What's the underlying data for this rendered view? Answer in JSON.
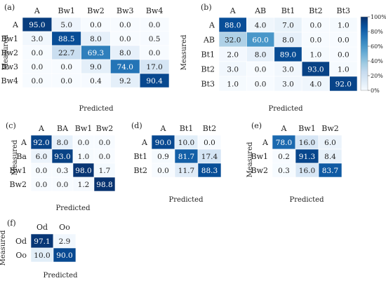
{
  "colorbar": {
    "ticks": [
      "100%",
      "80%",
      "60%",
      "40%",
      "20%",
      "0%"
    ],
    "colors": {
      "low": "#f7fbff",
      "high": "#08306b"
    }
  },
  "chart_data": [
    {
      "type": "heatmap",
      "panel": "(a)",
      "xlabel": "Predicted",
      "ylabel": "Measured",
      "categories": [
        "A",
        "Bw1",
        "Bw2",
        "Bw3",
        "Bw4"
      ],
      "rows": [
        "A",
        "Bw1",
        "Bw2",
        "Bw3",
        "Bw4"
      ],
      "values": [
        [
          95.0,
          5.0,
          0.0,
          0.0,
          0.0
        ],
        [
          3.0,
          88.5,
          8.0,
          0.0,
          0.5
        ],
        [
          0.0,
          22.7,
          69.3,
          8.0,
          0.0
        ],
        [
          0.0,
          0.0,
          9.0,
          74.0,
          17.0
        ],
        [
          0.0,
          0.0,
          0.4,
          9.2,
          90.4
        ]
      ]
    },
    {
      "type": "heatmap",
      "panel": "(b)",
      "xlabel": "Predicted",
      "ylabel": "Measured",
      "categories": [
        "A",
        "AB",
        "Bt1",
        "Bt2",
        "Bt3"
      ],
      "rows": [
        "A",
        "AB",
        "Bt1",
        "Bt2",
        "Bt3"
      ],
      "values": [
        [
          88.0,
          4.0,
          7.0,
          0.0,
          1.0
        ],
        [
          32.0,
          60.0,
          8.0,
          0.0,
          0.0
        ],
        [
          2.0,
          8.0,
          89.0,
          1.0,
          0.0
        ],
        [
          3.0,
          0.0,
          3.0,
          93.0,
          1.0
        ],
        [
          1.0,
          0.0,
          3.0,
          4.0,
          92.0
        ]
      ]
    },
    {
      "type": "heatmap",
      "panel": "(c)",
      "xlabel": "Predicted",
      "ylabel": "Measured",
      "categories": [
        "A",
        "BA",
        "Bw1",
        "Bw2"
      ],
      "rows": [
        "A",
        "Ba",
        "Bw1",
        "Bw2"
      ],
      "values": [
        [
          92.0,
          8.0,
          0.0,
          0.0
        ],
        [
          6.0,
          93.0,
          1.0,
          0.0
        ],
        [
          0.0,
          0.3,
          98.0,
          1.7
        ],
        [
          0.0,
          0.0,
          1.2,
          98.8
        ]
      ]
    },
    {
      "type": "heatmap",
      "panel": "(d)",
      "xlabel": "Predicted",
      "ylabel": "",
      "categories": [
        "A",
        "Bt1",
        "Bt2"
      ],
      "rows": [
        "A",
        "Bt1",
        "Bt2"
      ],
      "values": [
        [
          90.0,
          10.0,
          0.0
        ],
        [
          0.9,
          81.7,
          17.4
        ],
        [
          0.0,
          11.7,
          88.3
        ]
      ]
    },
    {
      "type": "heatmap",
      "panel": "(e)",
      "xlabel": "Predicted",
      "ylabel": "Measured",
      "categories": [
        "A",
        "Bw1",
        "Bw2"
      ],
      "rows": [
        "A",
        "Bw1",
        "Bw2"
      ],
      "values": [
        [
          78.0,
          16.0,
          6.0
        ],
        [
          0.2,
          91.3,
          8.4
        ],
        [
          0.3,
          16.0,
          83.7
        ]
      ]
    },
    {
      "type": "heatmap",
      "panel": "(f)",
      "xlabel": "Predicted",
      "ylabel": "Measured",
      "categories": [
        "Od",
        "Oo"
      ],
      "rows": [
        "Od",
        "Oo"
      ],
      "values": [
        [
          97.1,
          2.9
        ],
        [
          10.0,
          90.0
        ]
      ]
    }
  ]
}
